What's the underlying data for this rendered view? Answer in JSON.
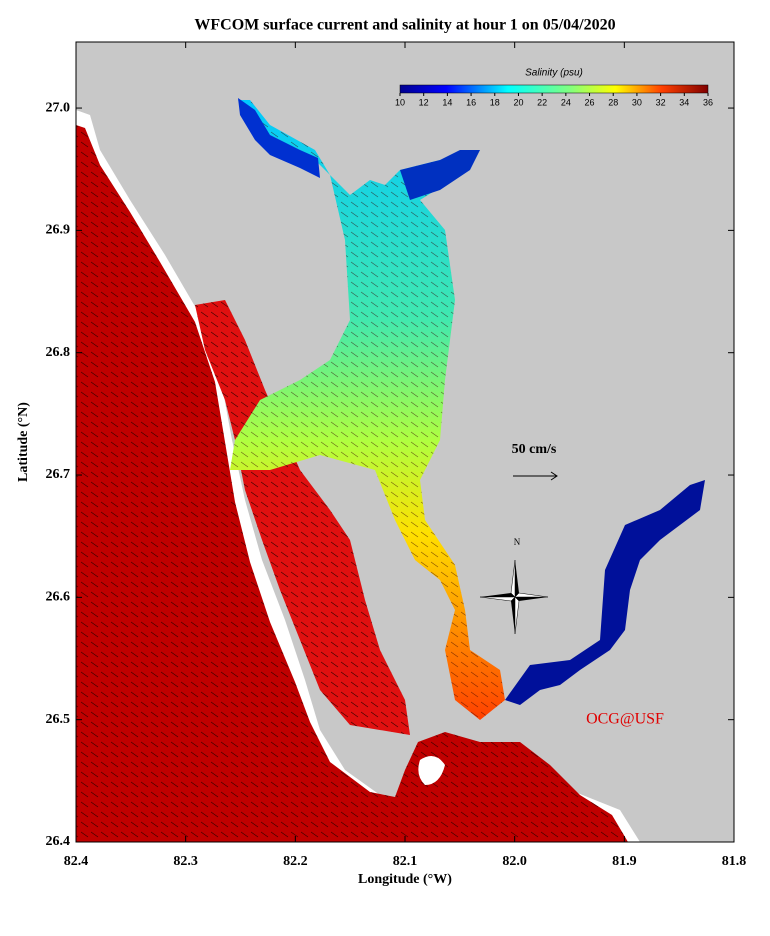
{
  "map": {
    "title": "WFCOM surface current and salinity at hour 1 on 05/04/2020",
    "xlabel": "Longitude (°W)",
    "ylabel": "Latitude (°N)",
    "xlim": [
      -82.4,
      -81.8
    ],
    "ylim": [
      26.4,
      27.054
    ],
    "xticks": [
      {
        "value": -82.4,
        "label": "82.4"
      },
      {
        "value": -82.3,
        "label": "82.3"
      },
      {
        "value": -82.2,
        "label": "82.2"
      },
      {
        "value": -82.1,
        "label": "82.1"
      },
      {
        "value": -82.0,
        "label": "82.0"
      },
      {
        "value": -81.9,
        "label": "81.9"
      },
      {
        "value": -81.8,
        "label": "81.8"
      }
    ],
    "yticks": [
      26.4,
      26.5,
      26.6,
      26.7,
      26.8,
      26.9,
      {
        "value": 27.0,
        "label": "27.0"
      }
    ],
    "colorbar": {
      "label": "Salinity (psu)",
      "range": [
        10,
        36
      ],
      "ticks": [
        10,
        12,
        14,
        16,
        18,
        20,
        22,
        24,
        26,
        28,
        30,
        32,
        34,
        36
      ]
    },
    "scale_label": "50 cm/s",
    "north_label": "N",
    "credit": "OCG@USF"
  }
}
